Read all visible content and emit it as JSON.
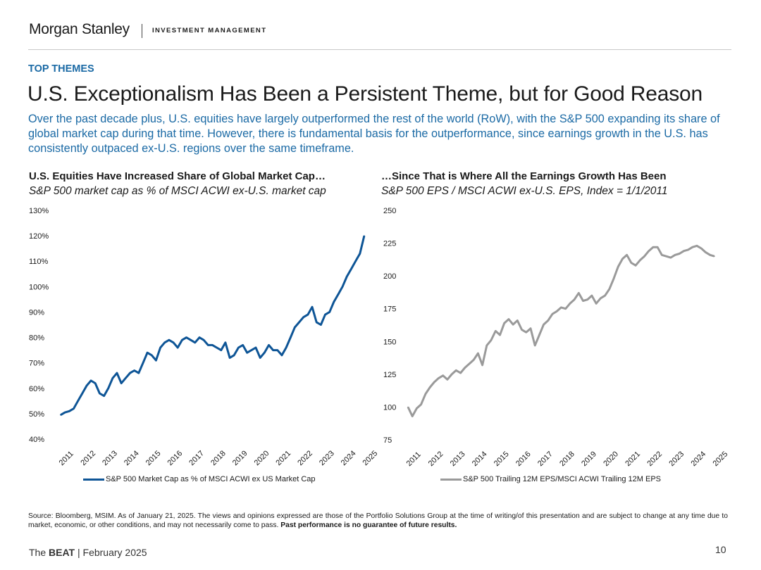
{
  "header": {
    "logo": "Morgan Stanley",
    "division": "INVESTMENT MANAGEMENT"
  },
  "section_label": "TOP THEMES",
  "title": "U.S. Exceptionalism Has Been a Persistent Theme, but for Good Reason",
  "subtitle": "Over the past decade plus, U.S. equities have largely outperformed the rest of the world (RoW), with the S&P 500 expanding its share of global market cap during that time. However, there is fundamental basis for the outperformance, since earnings growth in the U.S. has consistently outpaced ex-U.S. regions over the same timeframe.",
  "colors": {
    "accent": "#1b6aa5",
    "line_left": "#0e5596",
    "line_right": "#9a9a9a"
  },
  "chart_data": [
    {
      "type": "line",
      "title": "U.S. Equities Have Increased Share of Global Market Cap…",
      "subtitle": "S&P 500 market cap as % of MSCI ACWI ex-U.S. market cap",
      "xlabel": "",
      "ylabel": "",
      "x_ticks": [
        "2011",
        "2012",
        "2013",
        "2014",
        "2015",
        "2016",
        "2017",
        "2018",
        "2019",
        "2020",
        "2021",
        "2022",
        "2023",
        "2024",
        "2025"
      ],
      "y_ticks": [
        "130%",
        "120%",
        "110%",
        "100%",
        "90%",
        "80%",
        "70%",
        "60%",
        "50%",
        "40%"
      ],
      "ylim": [
        40,
        130
      ],
      "xlim": [
        2011.0,
        2025.1
      ],
      "legend": "bottom",
      "series": [
        {
          "name": "S&P 500 Market Cap as % of MSCI ACWI ex US Market Cap",
          "x": [
            2011.0,
            2011.2,
            2011.4,
            2011.6,
            2011.8,
            2012.0,
            2012.2,
            2012.4,
            2012.6,
            2012.8,
            2013.0,
            2013.2,
            2013.4,
            2013.6,
            2013.8,
            2014.0,
            2014.2,
            2014.4,
            2014.6,
            2014.8,
            2015.0,
            2015.2,
            2015.4,
            2015.6,
            2015.8,
            2016.0,
            2016.2,
            2016.4,
            2016.6,
            2016.8,
            2017.0,
            2017.2,
            2017.4,
            2017.6,
            2017.8,
            2018.0,
            2018.2,
            2018.4,
            2018.6,
            2018.8,
            2019.0,
            2019.2,
            2019.4,
            2019.6,
            2019.8,
            2020.0,
            2020.2,
            2020.4,
            2020.6,
            2020.8,
            2021.0,
            2021.2,
            2021.4,
            2021.6,
            2021.8,
            2022.0,
            2022.2,
            2022.4,
            2022.6,
            2022.8,
            2023.0,
            2023.2,
            2023.4,
            2023.6,
            2023.8,
            2024.0,
            2024.2,
            2024.4,
            2024.6,
            2024.8,
            2025.0
          ],
          "values": [
            49.5,
            50.5,
            51,
            52,
            55,
            58,
            61,
            63,
            62,
            58,
            57,
            60,
            64,
            66,
            62,
            64,
            66,
            67,
            66,
            70,
            74,
            73,
            71,
            76,
            78,
            79,
            78,
            76,
            79,
            80,
            79,
            78,
            80,
            79,
            77,
            77,
            76,
            75,
            78,
            72,
            73,
            76,
            77,
            74,
            75,
            76,
            72,
            74,
            77,
            75,
            75,
            73,
            76,
            80,
            84,
            86,
            88,
            89,
            92,
            86,
            85,
            89,
            90,
            94,
            97,
            100,
            104,
            107,
            110,
            113,
            120
          ]
        }
      ]
    },
    {
      "type": "line",
      "title": "…Since That is Where All the Earnings Growth Has Been",
      "subtitle": "S&P 500 EPS / MSCI ACWI ex-U.S. EPS, Index = 1/1/2011",
      "xlabel": "",
      "ylabel": "",
      "x_ticks": [
        "2011",
        "2012",
        "2013",
        "2014",
        "2015",
        "2016",
        "2017",
        "2018",
        "2019",
        "2020",
        "2021",
        "2022",
        "2023",
        "2024",
        "2025"
      ],
      "y_ticks": [
        "250",
        "225",
        "200",
        "175",
        "150",
        "125",
        "100",
        "75"
      ],
      "ylim": [
        75,
        250
      ],
      "xlim": [
        2011.0,
        2025.1
      ],
      "legend": "bottom",
      "series": [
        {
          "name": "S&P 500 Trailing 12M EPS/MSCI ACWI Trailing 12M EPS",
          "x": [
            2011.0,
            2011.2,
            2011.4,
            2011.6,
            2011.8,
            2012.0,
            2012.2,
            2012.4,
            2012.6,
            2012.8,
            2013.0,
            2013.2,
            2013.4,
            2013.6,
            2013.8,
            2014.0,
            2014.2,
            2014.4,
            2014.6,
            2014.8,
            2015.0,
            2015.2,
            2015.4,
            2015.6,
            2015.8,
            2016.0,
            2016.2,
            2016.4,
            2016.6,
            2016.8,
            2017.0,
            2017.2,
            2017.4,
            2017.6,
            2017.8,
            2018.0,
            2018.2,
            2018.4,
            2018.6,
            2018.8,
            2019.0,
            2019.2,
            2019.4,
            2019.6,
            2019.8,
            2020.0,
            2020.2,
            2020.4,
            2020.6,
            2020.8,
            2021.0,
            2021.2,
            2021.4,
            2021.6,
            2021.8,
            2022.0,
            2022.2,
            2022.4,
            2022.6,
            2022.8,
            2023.0,
            2023.2,
            2023.4,
            2023.6,
            2023.8,
            2024.0,
            2024.2,
            2024.4,
            2024.6,
            2024.8,
            2025.0
          ],
          "values": [
            100,
            93,
            99,
            102,
            110,
            115,
            119,
            122,
            124,
            121,
            125,
            128,
            126,
            130,
            133,
            136,
            141,
            132,
            147,
            151,
            158,
            155,
            164,
            167,
            163,
            166,
            159,
            157,
            160,
            147,
            155,
            163,
            166,
            171,
            173,
            176,
            175,
            179,
            182,
            187,
            181,
            182,
            185,
            179,
            183,
            185,
            190,
            198,
            207,
            213,
            216,
            210,
            208,
            212,
            215,
            219,
            222,
            222,
            216,
            215,
            214,
            216,
            217,
            219,
            220,
            222,
            223,
            221,
            218,
            216,
            215
          ]
        }
      ]
    }
  ],
  "legend_left": "S&P 500 Market Cap as % of MSCI ACWI ex US Market Cap",
  "legend_right": "S&P 500 Trailing 12M EPS/MSCI ACWI Trailing 12M EPS",
  "source_text": "Source: Bloomberg, MSIM. As of January 21, 2025. The views and opinions expressed are those of the Portfolio Solutions Group at the time of writing/of this presentation and are subject to change at any time due to market, economic, or other conditions, and may not necessarily come to pass.",
  "disclaimer_bold": "Past performance is no guarantee of future results.",
  "footer": {
    "prefix": "The",
    "brand": "BEAT",
    "suffix": "| February 2025"
  },
  "page_number": "10"
}
